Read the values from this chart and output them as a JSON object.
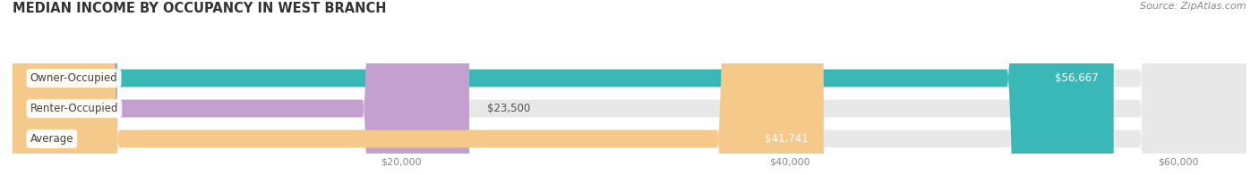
{
  "title": "MEDIAN INCOME BY OCCUPANCY IN WEST BRANCH",
  "source": "Source: ZipAtlas.com",
  "categories": [
    "Owner-Occupied",
    "Renter-Occupied",
    "Average"
  ],
  "values": [
    56667,
    23500,
    41741
  ],
  "bar_colors": [
    "#3ab8b8",
    "#c4a0d0",
    "#f5c98a"
  ],
  "bg_bar_color": "#e8e8e8",
  "label_texts": [
    "$56,667",
    "$23,500",
    "$41,741"
  ],
  "x_ticks": [
    20000,
    40000,
    60000
  ],
  "x_tick_labels": [
    "$20,000",
    "$40,000",
    "$60,000"
  ],
  "xlim_max": 63500,
  "background_color": "#ffffff",
  "title_fontsize": 10.5,
  "source_fontsize": 8,
  "bar_label_fontsize": 8.5,
  "cat_label_fontsize": 8.5,
  "tick_fontsize": 8,
  "bar_height": 0.58,
  "figsize": [
    14.06,
    1.96
  ],
  "dpi": 100
}
